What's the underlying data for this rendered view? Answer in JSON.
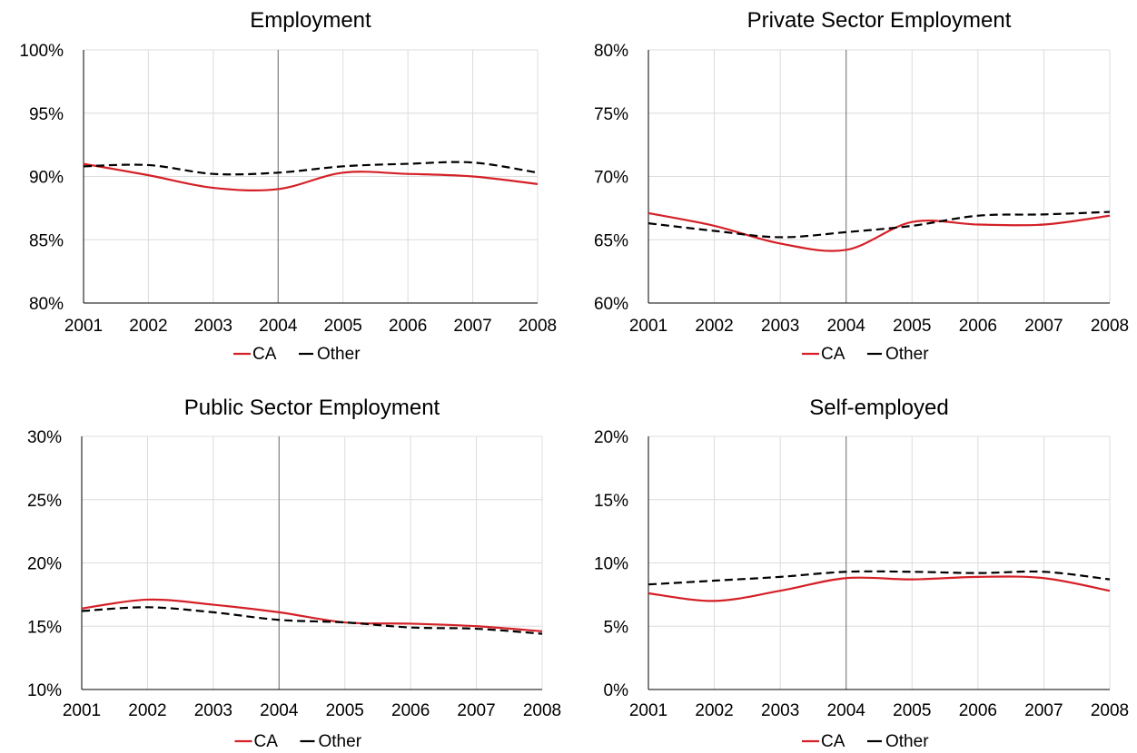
{
  "legend": {
    "ca_label": "CA",
    "other_label": "Other"
  },
  "colors": {
    "ca": "#d42027",
    "other": "#000000",
    "grid": "#dcdcdc",
    "marker": "#808080"
  },
  "chart_data": [
    {
      "type": "line",
      "title": "Employment",
      "x": [
        2001,
        2002,
        2003,
        2004,
        2005,
        2006,
        2007,
        2008
      ],
      "xticks": [
        "2001",
        "2002",
        "2003",
        "2004",
        "2005",
        "2006",
        "2007",
        "2008"
      ],
      "ylim": [
        80,
        100
      ],
      "yticks": [
        "80%",
        "85%",
        "90%",
        "95%",
        "100%"
      ],
      "vline_x": 2004,
      "series": [
        {
          "name": "CA",
          "style": "solid",
          "values": [
            91.0,
            90.1,
            89.1,
            89.0,
            90.3,
            90.2,
            90.0,
            89.4
          ]
        },
        {
          "name": "Other",
          "style": "dashed",
          "values": [
            90.8,
            90.9,
            90.2,
            90.3,
            90.8,
            91.0,
            91.1,
            90.3
          ]
        }
      ],
      "legend_position": "bottom",
      "grid": true
    },
    {
      "type": "line",
      "title": "Private Sector Employment",
      "x": [
        2001,
        2002,
        2003,
        2004,
        2005,
        2006,
        2007,
        2008
      ],
      "xticks": [
        "2001",
        "2002",
        "2003",
        "2004",
        "2005",
        "2006",
        "2007",
        "2008"
      ],
      "ylim": [
        60,
        80
      ],
      "yticks": [
        "60%",
        "65%",
        "70%",
        "75%",
        "80%"
      ],
      "vline_x": 2004,
      "series": [
        {
          "name": "CA",
          "style": "solid",
          "values": [
            67.1,
            66.1,
            64.7,
            64.2,
            66.4,
            66.2,
            66.2,
            66.9
          ]
        },
        {
          "name": "Other",
          "style": "dashed",
          "values": [
            66.3,
            65.7,
            65.2,
            65.6,
            66.1,
            66.9,
            67.0,
            67.2
          ]
        }
      ],
      "legend_position": "bottom",
      "grid": true
    },
    {
      "type": "line",
      "title": "Public Sector Employment",
      "x": [
        2001,
        2002,
        2003,
        2004,
        2005,
        2006,
        2007,
        2008
      ],
      "xticks": [
        "2001",
        "2002",
        "2003",
        "2004",
        "2005",
        "2006",
        "2007",
        "2008"
      ],
      "ylim": [
        10,
        30
      ],
      "yticks": [
        "10%",
        "15%",
        "20%",
        "25%",
        "30%"
      ],
      "vline_x": 2004,
      "series": [
        {
          "name": "CA",
          "style": "solid",
          "values": [
            16.4,
            17.1,
            16.7,
            16.1,
            15.3,
            15.2,
            15.0,
            14.6
          ]
        },
        {
          "name": "Other",
          "style": "dashed",
          "values": [
            16.2,
            16.5,
            16.1,
            15.5,
            15.3,
            14.9,
            14.8,
            14.4
          ]
        }
      ],
      "legend_position": "bottom",
      "grid": true
    },
    {
      "type": "line",
      "title": "Self-employed",
      "x": [
        2001,
        2002,
        2003,
        2004,
        2005,
        2006,
        2007,
        2008
      ],
      "xticks": [
        "2001",
        "2002",
        "2003",
        "2004",
        "2005",
        "2006",
        "2007",
        "2008"
      ],
      "ylim": [
        0,
        20
      ],
      "yticks": [
        "0%",
        "5%",
        "10%",
        "15%",
        "20%"
      ],
      "vline_x": 2004,
      "series": [
        {
          "name": "CA",
          "style": "solid",
          "values": [
            7.6,
            7.0,
            7.8,
            8.8,
            8.7,
            8.9,
            8.8,
            7.8
          ]
        },
        {
          "name": "Other",
          "style": "dashed",
          "values": [
            8.3,
            8.6,
            8.9,
            9.3,
            9.3,
            9.2,
            9.3,
            8.7
          ]
        }
      ],
      "legend_position": "bottom",
      "grid": true
    }
  ]
}
